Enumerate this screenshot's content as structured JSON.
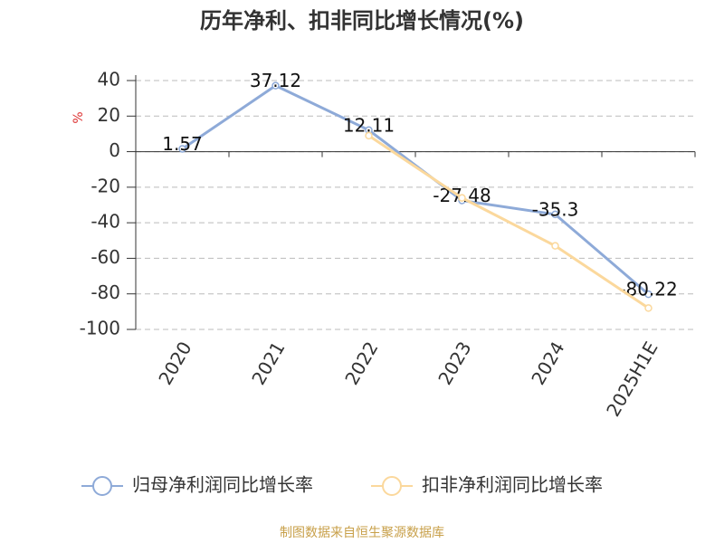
{
  "chart_data": {
    "type": "line",
    "title": "历年净利、扣非同比增长情况(%)",
    "y_label": "%",
    "categories": [
      "2020",
      "2021",
      "2022",
      "2023",
      "2024",
      "2025H1E"
    ],
    "series": [
      {
        "name": "归母净利润同比增长率",
        "color": "#8eaad8",
        "values": [
          1.57,
          37.12,
          12.11,
          -27.48,
          -35.3,
          -80.22
        ],
        "show_labels": true
      },
      {
        "name": "扣非净利润同比增长率",
        "color": "#fbd89c",
        "values": [
          null,
          null,
          9,
          -26,
          -53,
          -88
        ],
        "show_labels": false
      }
    ],
    "ylim": [
      -100,
      40
    ],
    "yticks": [
      -100,
      -80,
      -60,
      -40,
      -20,
      0,
      20,
      40
    ],
    "grid": true,
    "legend": "bottom",
    "footer": "制图数据来自恒生聚源数据库"
  }
}
